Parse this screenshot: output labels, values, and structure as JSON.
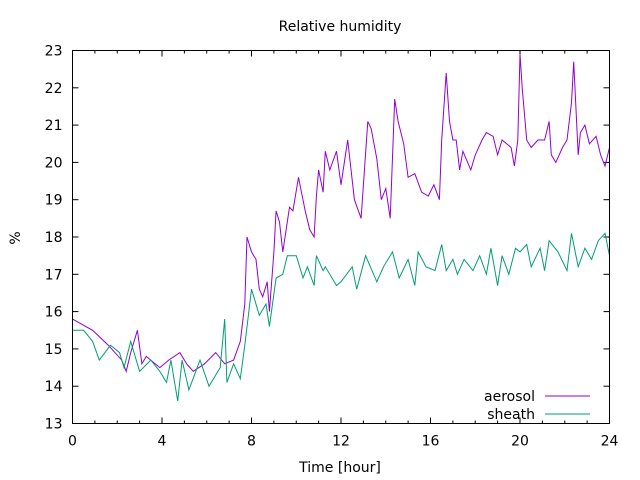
{
  "chart_data": {
    "type": "line",
    "title": "Relative humidity",
    "xlabel": "Time [hour]",
    "ylabel": "%",
    "xlim": [
      0,
      24
    ],
    "ylim": [
      13,
      23
    ],
    "xticks": [
      0,
      4,
      8,
      12,
      16,
      20,
      24
    ],
    "xtick_labels": [
      "0",
      "4",
      "8",
      "12",
      "16",
      "20",
      "24"
    ],
    "yticks": [
      13,
      14,
      15,
      16,
      17,
      18,
      19,
      20,
      21,
      22,
      23
    ],
    "ytick_labels": [
      "13",
      "14",
      "15",
      "16",
      "17",
      "18",
      "19",
      "20",
      "21",
      "22",
      "23"
    ],
    "legend_position": "bottom-right",
    "grid": false,
    "series": [
      {
        "name": "aerosol",
        "color": "#9400d3",
        "x": [
          0,
          0.9,
          1.6,
          2.2,
          2.4,
          2.6,
          2.9,
          3.1,
          3.3,
          3.9,
          4.3,
          4.8,
          5.1,
          5.4,
          5.9,
          6.4,
          6.8,
          7.2,
          7.5,
          7.7,
          7.8,
          8.0,
          8.2,
          8.35,
          8.5,
          8.7,
          8.8,
          9.0,
          9.1,
          9.25,
          9.4,
          9.7,
          9.85,
          10.1,
          10.4,
          10.6,
          10.8,
          10.9,
          11.0,
          11.2,
          11.3,
          11.5,
          11.8,
          12.0,
          12.3,
          12.6,
          12.9,
          13.2,
          13.35,
          13.6,
          13.8,
          14.0,
          14.2,
          14.4,
          14.55,
          14.8,
          15.0,
          15.3,
          15.6,
          15.9,
          16.15,
          16.4,
          16.5,
          16.7,
          16.85,
          17.0,
          17.15,
          17.3,
          17.45,
          17.8,
          18.0,
          18.3,
          18.5,
          18.8,
          19.0,
          19.2,
          19.6,
          19.75,
          19.9,
          20.0,
          20.1,
          20.3,
          20.5,
          20.8,
          21.1,
          21.3,
          21.4,
          21.6,
          21.9,
          22.1,
          22.3,
          22.4,
          22.6,
          22.7,
          22.9,
          23.1,
          23.4,
          23.6,
          23.8,
          24.0
        ],
        "y": [
          15.8,
          15.5,
          15.1,
          14.7,
          14.4,
          14.9,
          15.5,
          14.6,
          14.8,
          14.5,
          14.7,
          14.9,
          14.6,
          14.4,
          14.6,
          14.9,
          14.6,
          14.7,
          15.2,
          16.2,
          18.0,
          17.6,
          17.4,
          16.6,
          16.4,
          16.8,
          16.0,
          17.6,
          18.7,
          18.4,
          17.6,
          18.8,
          18.7,
          19.6,
          18.7,
          18.2,
          18.0,
          19.1,
          19.8,
          19.2,
          20.3,
          19.8,
          20.3,
          19.4,
          20.6,
          19.0,
          18.5,
          21.1,
          20.9,
          20.1,
          19.0,
          19.3,
          18.5,
          21.7,
          21.1,
          20.5,
          19.6,
          19.7,
          19.2,
          19.1,
          19.4,
          19.0,
          20.6,
          22.4,
          21.1,
          20.6,
          20.6,
          19.8,
          20.3,
          19.8,
          20.2,
          20.6,
          20.8,
          20.7,
          20.2,
          20.6,
          20.4,
          19.9,
          20.6,
          22.9,
          22.0,
          20.6,
          20.4,
          20.6,
          20.6,
          21.1,
          20.2,
          20.0,
          20.4,
          20.6,
          21.6,
          22.7,
          20.2,
          20.8,
          21.0,
          20.5,
          20.7,
          20.2,
          19.9,
          20.4
        ]
      },
      {
        "name": "sheath",
        "color": "#009e73",
        "x": [
          0,
          0.5,
          0.9,
          1.2,
          1.7,
          2.1,
          2.3,
          2.6,
          3.0,
          3.5,
          3.9,
          4.2,
          4.4,
          4.7,
          4.9,
          5.2,
          5.7,
          6.1,
          6.6,
          6.8,
          6.9,
          7.2,
          7.5,
          7.7,
          8.0,
          8.2,
          8.35,
          8.65,
          8.8,
          9.1,
          9.4,
          9.6,
          10.0,
          10.3,
          10.5,
          10.8,
          10.9,
          11.2,
          11.3,
          11.8,
          12.0,
          12.5,
          12.7,
          13.1,
          13.6,
          13.9,
          14.3,
          14.6,
          15.0,
          15.3,
          15.45,
          15.8,
          16.2,
          16.5,
          16.7,
          17.0,
          17.2,
          17.5,
          17.9,
          18.2,
          18.5,
          18.7,
          19.0,
          19.2,
          19.5,
          19.8,
          20.0,
          20.3,
          20.5,
          20.9,
          21.1,
          21.3,
          21.7,
          22.1,
          22.3,
          22.6,
          22.9,
          23.2,
          23.5,
          23.8,
          24.0
        ],
        "y": [
          15.5,
          15.5,
          15.2,
          14.7,
          15.1,
          14.9,
          14.5,
          15.2,
          14.4,
          14.7,
          14.4,
          14.1,
          14.7,
          13.6,
          14.7,
          13.9,
          14.7,
          14.0,
          14.5,
          15.8,
          14.1,
          14.6,
          14.2,
          15.1,
          16.6,
          16.2,
          15.9,
          16.2,
          15.6,
          16.9,
          17.0,
          17.5,
          17.5,
          16.9,
          17.2,
          16.7,
          17.5,
          17.1,
          17.2,
          16.7,
          16.8,
          17.2,
          16.6,
          17.5,
          16.8,
          17.2,
          17.6,
          16.9,
          17.4,
          16.7,
          17.6,
          17.2,
          17.1,
          17.8,
          17.1,
          17.4,
          17.0,
          17.4,
          17.1,
          17.5,
          17.0,
          17.7,
          16.7,
          17.5,
          17.0,
          17.7,
          17.6,
          17.8,
          17.2,
          17.7,
          17.1,
          17.9,
          17.6,
          17.1,
          18.1,
          17.2,
          17.7,
          17.4,
          17.9,
          18.1,
          17.5
        ]
      }
    ]
  }
}
